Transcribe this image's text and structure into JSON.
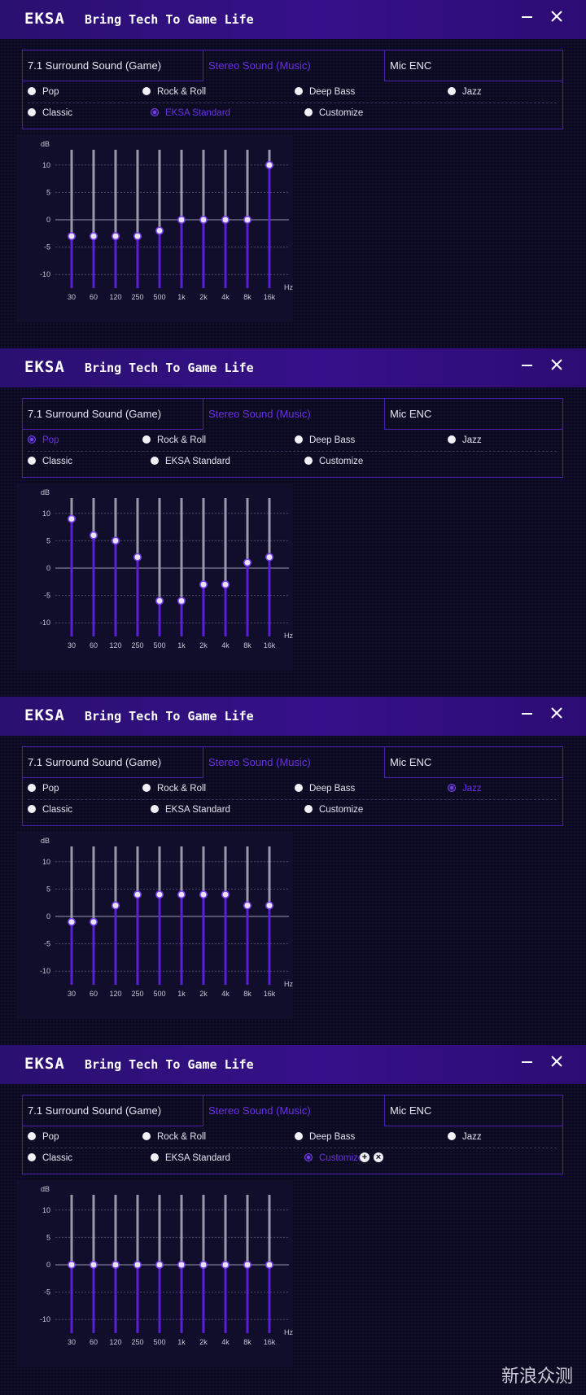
{
  "app": {
    "logo_text": "EKSA",
    "slogan": "Bring Tech To Game Life"
  },
  "tabs": [
    "7.1 Surround Sound (Game)",
    "Stereo Sound (Music)",
    "Mic ENC"
  ],
  "presets": [
    "Pop",
    "Rock & Roll",
    "Deep Bass",
    "Jazz",
    "Classic",
    "EKSA Standard",
    "Customize"
  ],
  "colors": {
    "accent": "#6a30e8",
    "titlebar": "#36108a",
    "border": "#4a20b0",
    "bar_fill": "#5a1fd8",
    "bar_track": "#9a98a8"
  },
  "icons": {
    "minimize": "minimize-icon",
    "close": "close-icon",
    "add": "plus-circle-icon",
    "delete": "x-circle-icon"
  },
  "eq_axis": {
    "y_label": "dB",
    "x_label": "Hz",
    "y_ticks": [
      "10",
      "5",
      "0",
      "-5",
      "-10"
    ],
    "frequencies": [
      "30",
      "60",
      "120",
      "250",
      "500",
      "1k",
      "2k",
      "4k",
      "8k",
      "16k"
    ]
  },
  "panels": [
    {
      "active_tab": "Stereo Sound (Music)",
      "selected_preset": "EKSA Standard",
      "chart_data": {
        "type": "bar",
        "categories": [
          "30",
          "60",
          "120",
          "250",
          "500",
          "1k",
          "2k",
          "4k",
          "8k",
          "16k"
        ],
        "values": [
          -3,
          -3,
          -3,
          -3,
          -2,
          0,
          0,
          0,
          0,
          10
        ],
        "ylim": [
          -12.5,
          12.5
        ],
        "ylabel": "dB",
        "xlabel": "Hz"
      }
    },
    {
      "active_tab": "Stereo Sound (Music)",
      "selected_preset": "Pop",
      "chart_data": {
        "type": "bar",
        "categories": [
          "30",
          "60",
          "120",
          "250",
          "500",
          "1k",
          "2k",
          "4k",
          "8k",
          "16k"
        ],
        "values": [
          9,
          6,
          5,
          2,
          -6,
          -6,
          -3,
          -3,
          1,
          2
        ],
        "ylim": [
          -12.5,
          12.5
        ],
        "ylabel": "dB",
        "xlabel": "Hz"
      }
    },
    {
      "active_tab": "Stereo Sound (Music)",
      "selected_preset": "Jazz",
      "chart_data": {
        "type": "bar",
        "categories": [
          "30",
          "60",
          "120",
          "250",
          "500",
          "1k",
          "2k",
          "4k",
          "8k",
          "16k"
        ],
        "values": [
          -1,
          -1,
          2,
          4,
          4,
          4,
          4,
          4,
          2,
          2
        ],
        "ylim": [
          -12.5,
          12.5
        ],
        "ylabel": "dB",
        "xlabel": "Hz"
      }
    },
    {
      "active_tab": "Stereo Sound (Music)",
      "selected_preset": "Customize",
      "show_custom_actions": true,
      "chart_data": {
        "type": "bar",
        "categories": [
          "30",
          "60",
          "120",
          "250",
          "500",
          "1k",
          "2k",
          "4k",
          "8k",
          "16k"
        ],
        "values": [
          0,
          0,
          0,
          0,
          0,
          0,
          0,
          0,
          0,
          0
        ],
        "ylim": [
          -12.5,
          12.5
        ],
        "ylabel": "dB",
        "xlabel": "Hz"
      }
    }
  ],
  "watermark": "新浪众测"
}
